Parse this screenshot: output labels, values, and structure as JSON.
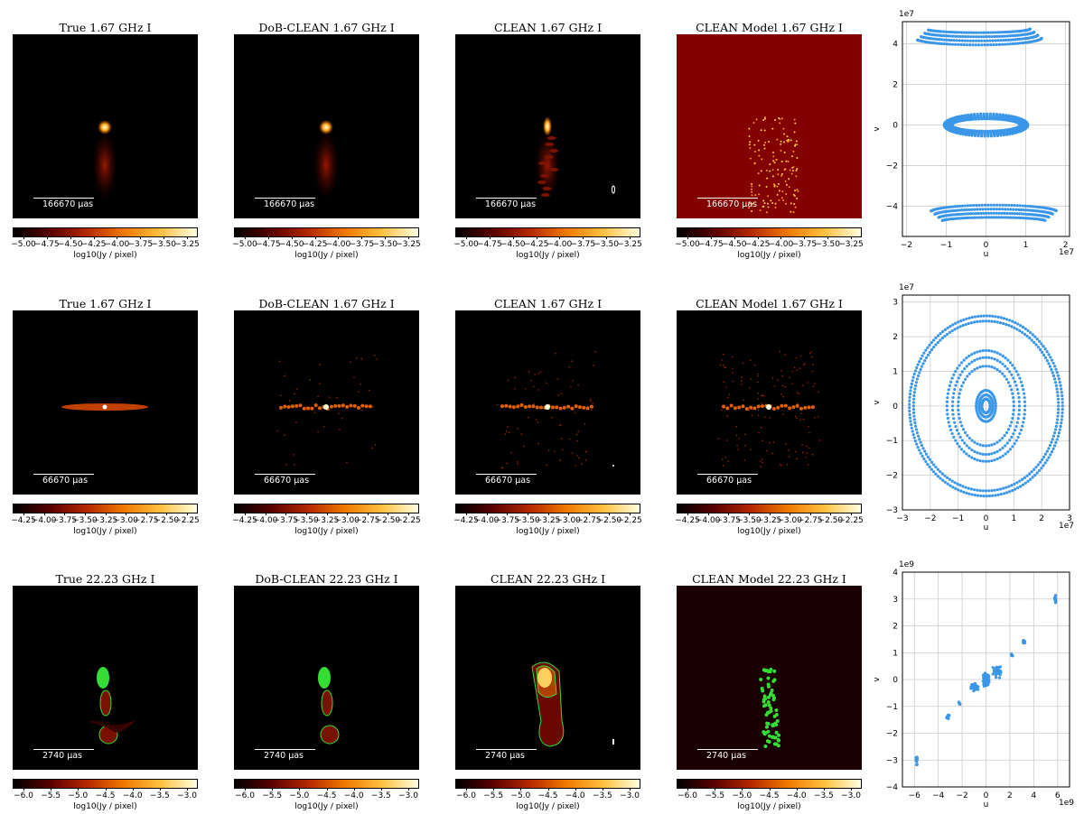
{
  "figure": {
    "rows": [
      {
        "panels": [
          {
            "title": "True 1.67 GHz I",
            "scale_label": "166670 μas"
          },
          {
            "title": "DoB-CLEAN 1.67 GHz I",
            "scale_label": "166670 μas"
          },
          {
            "title": "CLEAN 1.67 GHz I",
            "scale_label": "166670 μas"
          },
          {
            "title": "CLEAN Model 1.67 GHz I",
            "scale_label": "166670 μas"
          }
        ],
        "colorbar_ticks": [
          "−5.00",
          "−4.75",
          "−4.50",
          "−4.25",
          "−4.00",
          "−3.75",
          "−3.50",
          "−3.25"
        ],
        "colorbar_label": "log10(Jy / pixel)"
      },
      {
        "panels": [
          {
            "title": "True 1.67 GHz I",
            "scale_label": "66670 μas"
          },
          {
            "title": "DoB-CLEAN 1.67 GHz I",
            "scale_label": "66670 μas"
          },
          {
            "title": "CLEAN 1.67 GHz I",
            "scale_label": "66670 μas"
          },
          {
            "title": "CLEAN Model 1.67 GHz I",
            "scale_label": "66670 μas"
          }
        ],
        "colorbar_ticks": [
          "−4.25",
          "−4.00",
          "−3.75",
          "−3.50",
          "−3.25",
          "−3.00",
          "−2.75",
          "−2.50",
          "−2.25"
        ],
        "colorbar_label": "log10(Jy / pixel)"
      },
      {
        "panels": [
          {
            "title": "True 22.23 GHz I",
            "scale_label": "2740 μas"
          },
          {
            "title": "DoB-CLEAN 22.23 GHz I",
            "scale_label": "2740 μas"
          },
          {
            "title": "CLEAN 22.23 GHz I",
            "scale_label": "2740 μas"
          },
          {
            "title": "CLEAN Model 22.23 GHz I",
            "scale_label": "2740 μas"
          }
        ],
        "colorbar_ticks": [
          "−6.0",
          "−5.5",
          "−5.0",
          "−4.5",
          "−4.0",
          "−3.5",
          "−3.0"
        ],
        "colorbar_label": "log10(Jy / pixel)"
      }
    ],
    "colormap": [
      "#000000",
      "#5a0000",
      "#b42800",
      "#f07800",
      "#ffc040",
      "#ffffe0"
    ],
    "uv_color": "#3a96e8",
    "contour_color": "#33dd33"
  },
  "chart_data": [
    {
      "type": "scatter",
      "xlabel": "u",
      "ylabel": "v",
      "x_offset_label": "1e7",
      "y_offset_label": "1e7",
      "xlim": [
        -2.1,
        2.1
      ],
      "ylim": [
        -5.5,
        5.1
      ],
      "xticks": [
        "−2",
        "−1",
        "0",
        "1",
        "2"
      ],
      "yticks": [
        "−4",
        "−2",
        "0",
        "2",
        "4"
      ],
      "grid": true,
      "pattern": "arcs",
      "series": [
        {
          "tracks": [
            {
              "cx": 0.0,
              "cy": 0.0,
              "rx": 1.05,
              "ry": 0.55,
              "count": 80
            },
            {
              "cx": -0.2,
              "cy": 4.3,
              "rx": 1.6,
              "ry": 0.35,
              "count": 60
            },
            {
              "cx": 0.2,
              "cy": -4.3,
              "rx": 1.6,
              "ry": 0.35,
              "count": 60
            }
          ]
        }
      ]
    },
    {
      "type": "scatter",
      "xlabel": "u",
      "ylabel": "v",
      "x_offset_label": "1e7",
      "y_offset_label": "1e7",
      "xlim": [
        -3.0,
        3.0
      ],
      "ylim": [
        -3.0,
        3.2
      ],
      "xticks": [
        "−3",
        "−2",
        "−1",
        "0",
        "1",
        "2",
        "3"
      ],
      "yticks": [
        "−3",
        "−2",
        "−1",
        "0",
        "1",
        "2",
        "3"
      ],
      "grid": true,
      "pattern": "ellipses",
      "series": [
        {
          "ellipses": [
            {
              "rx": 2.75,
              "ry": 2.6
            },
            {
              "rx": 2.6,
              "ry": 2.45
            },
            {
              "rx": 1.4,
              "ry": 1.6
            },
            {
              "rx": 1.2,
              "ry": 1.4
            },
            {
              "rx": 1.0,
              "ry": 1.15
            },
            {
              "rx": 0.35,
              "ry": 0.45
            },
            {
              "rx": 0.25,
              "ry": 0.32
            },
            {
              "rx": 0.15,
              "ry": 0.2
            }
          ]
        }
      ]
    },
    {
      "type": "scatter",
      "xlabel": "u",
      "ylabel": "v",
      "x_offset_label": "1e9",
      "y_offset_label": "1e9",
      "xlim": [
        -7,
        7
      ],
      "ylim": [
        -4,
        4
      ],
      "xticks": [
        "−6",
        "−4",
        "−2",
        "0",
        "2",
        "4",
        "6"
      ],
      "yticks": [
        "−4",
        "−3",
        "−2",
        "−1",
        "0",
        "1",
        "2",
        "3",
        "4"
      ],
      "grid": true,
      "pattern": "clusters",
      "series": [
        {
          "clusters": [
            {
              "x": 0.0,
              "y": 0.0,
              "sx": 0.35,
              "sy": 0.3,
              "n": 160
            },
            {
              "x": 0.9,
              "y": 0.3,
              "sx": 0.5,
              "sy": 0.25,
              "n": 40
            },
            {
              "x": -0.9,
              "y": -0.3,
              "sx": 0.5,
              "sy": 0.25,
              "n": 40
            },
            {
              "x": 3.2,
              "y": 1.4,
              "sx": 0.15,
              "sy": 0.1,
              "n": 14
            },
            {
              "x": -3.2,
              "y": -1.4,
              "sx": 0.15,
              "sy": 0.1,
              "n": 14
            },
            {
              "x": 2.2,
              "y": 0.9,
              "sx": 0.12,
              "sy": 0.08,
              "n": 8
            },
            {
              "x": -2.2,
              "y": -0.9,
              "sx": 0.12,
              "sy": 0.08,
              "n": 8
            },
            {
              "x": 5.8,
              "y": 3.0,
              "sx": 0.1,
              "sy": 0.25,
              "n": 14
            },
            {
              "x": -5.8,
              "y": -3.0,
              "sx": 0.1,
              "sy": 0.25,
              "n": 14
            }
          ]
        }
      ]
    }
  ]
}
